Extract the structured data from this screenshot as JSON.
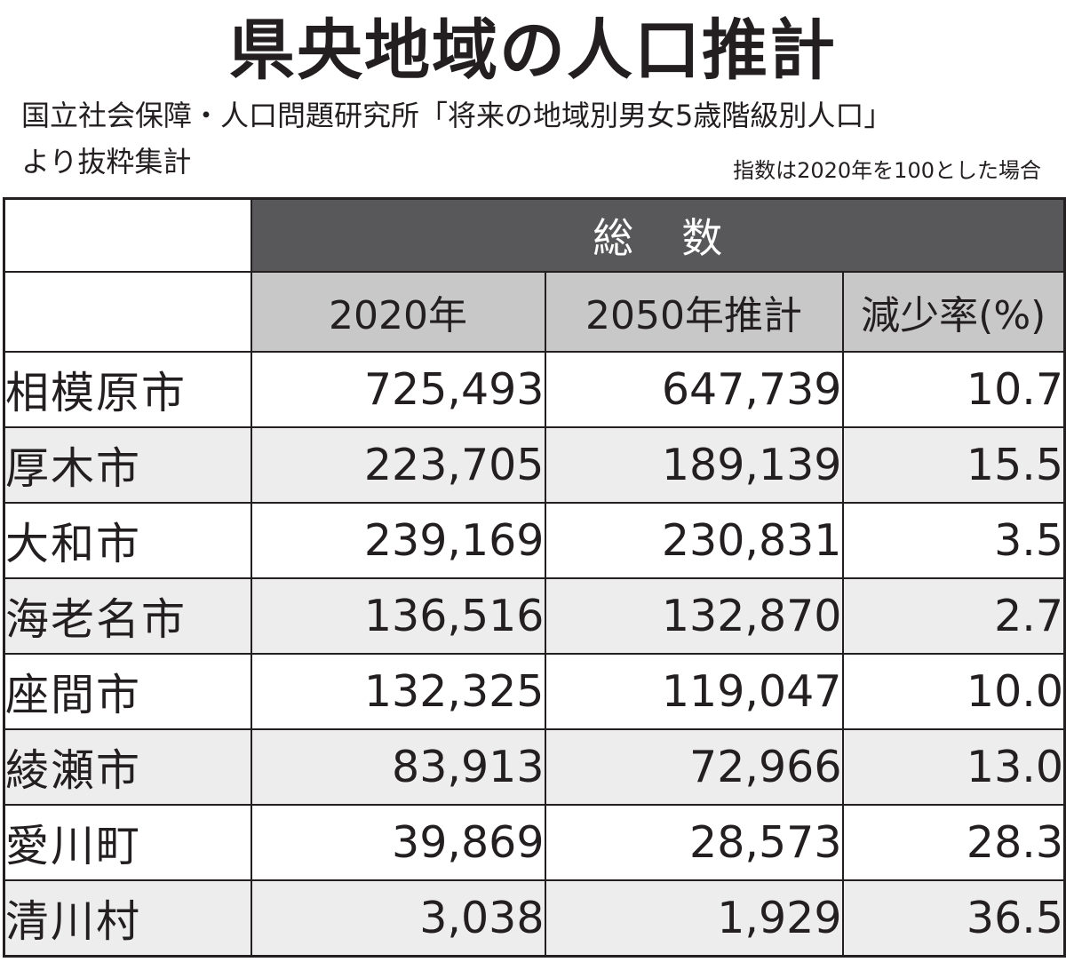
{
  "title": "県央地域の人口推計",
  "source_line1": "国立社会保障・人口問題研究所「将来の地域別男女5歳階級別人口」",
  "source_line2": "より抜粋集計",
  "note": "指数は2020年を100とした場合",
  "table": {
    "group_header": "総数",
    "columns": [
      "2020年",
      "2050年推計",
      "減少率(%)"
    ],
    "rows": [
      {
        "name": "相模原市",
        "pop2020": "725,493",
        "pop2050": "647,739",
        "rate": "10.7"
      },
      {
        "name": "厚木市",
        "pop2020": "223,705",
        "pop2050": "189,139",
        "rate": "15.5"
      },
      {
        "name": "大和市",
        "pop2020": "239,169",
        "pop2050": "230,831",
        "rate": "3.5"
      },
      {
        "name": "海老名市",
        "pop2020": "136,516",
        "pop2050": "132,870",
        "rate": "2.7"
      },
      {
        "name": "座間市",
        "pop2020": "132,325",
        "pop2050": "119,047",
        "rate": "10.0"
      },
      {
        "name": "綾瀬市",
        "pop2020": "83,913",
        "pop2050": "72,966",
        "rate": "13.0"
      },
      {
        "name": "愛川町",
        "pop2020": "39,869",
        "pop2050": "28,573",
        "rate": "28.3"
      },
      {
        "name": "清川村",
        "pop2020": "3,038",
        "pop2050": "1,929",
        "rate": "36.5"
      }
    ]
  },
  "colors": {
    "text": "#231f20",
    "group_header_bg": "#58585a",
    "column_header_bg": "#c8c8c9",
    "shaded_row_bg": "#ededee"
  }
}
